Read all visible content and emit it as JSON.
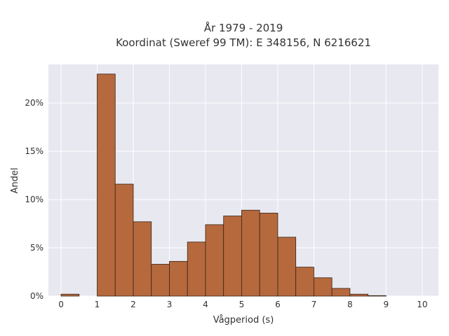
{
  "chart_data": {
    "type": "bar",
    "title_line1": "År 1979 - 2019",
    "title_line2": "Koordinat (Sweref 99 TM): E 348156, N 6216621",
    "xlabel": "Vågperiod (s)",
    "ylabel": "Andel",
    "xlim": [
      -0.35,
      10.45
    ],
    "ylim": [
      0,
      24
    ],
    "xticks": [
      0,
      1,
      2,
      3,
      4,
      5,
      6,
      7,
      8,
      9,
      10
    ],
    "xtick_labels": [
      "0",
      "1",
      "2",
      "3",
      "4",
      "5",
      "6",
      "7",
      "8",
      "9",
      "10"
    ],
    "yticks": [
      0,
      5,
      10,
      15,
      20
    ],
    "ytick_labels": [
      "0%",
      "5%",
      "10%",
      "15%",
      "20%"
    ],
    "bin_width": 0.5,
    "bins": [
      {
        "start": 0.0,
        "value": 0.2
      },
      {
        "start": 0.5,
        "value": 0.0
      },
      {
        "start": 1.0,
        "value": 23.0
      },
      {
        "start": 1.5,
        "value": 11.6
      },
      {
        "start": 2.0,
        "value": 7.7
      },
      {
        "start": 2.5,
        "value": 3.3
      },
      {
        "start": 3.0,
        "value": 3.6
      },
      {
        "start": 3.5,
        "value": 5.6
      },
      {
        "start": 4.0,
        "value": 7.4
      },
      {
        "start": 4.5,
        "value": 8.3
      },
      {
        "start": 5.0,
        "value": 8.9
      },
      {
        "start": 5.5,
        "value": 8.6
      },
      {
        "start": 6.0,
        "value": 6.1
      },
      {
        "start": 6.5,
        "value": 3.0
      },
      {
        "start": 7.0,
        "value": 1.9
      },
      {
        "start": 7.5,
        "value": 0.8
      },
      {
        "start": 8.0,
        "value": 0.2
      },
      {
        "start": 8.5,
        "value": 0.05
      }
    ],
    "grid": true,
    "bar_color": "#b5693d",
    "bar_edge_color": "#3a2418",
    "plot_background": "#e8e8f0",
    "grid_color": "#ffffff"
  }
}
